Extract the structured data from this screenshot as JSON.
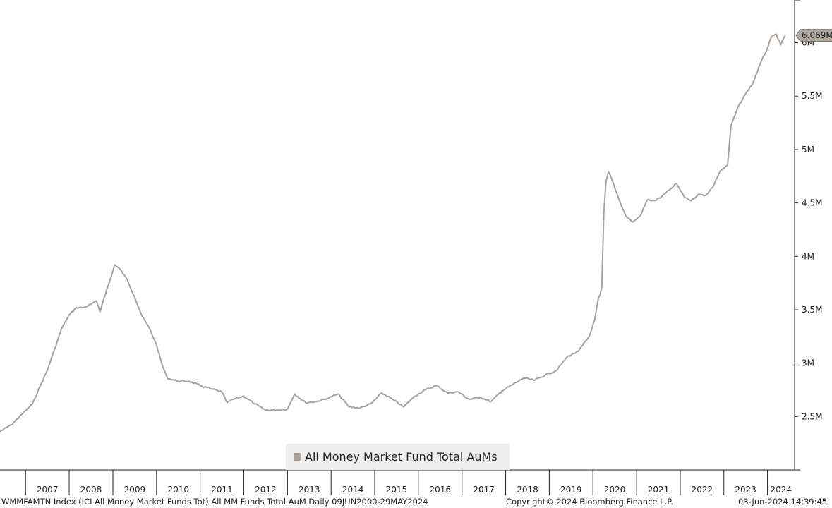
{
  "chart_data": {
    "type": "line",
    "title": "",
    "xlabel": "",
    "ylabel": "",
    "y_ticks": [
      {
        "value": 2.5,
        "label": "2.5M"
      },
      {
        "value": 3.0,
        "label": "3M"
      },
      {
        "value": 3.5,
        "label": "3.5M"
      },
      {
        "value": 4.0,
        "label": "4M"
      },
      {
        "value": 4.5,
        "label": "4.5M"
      },
      {
        "value": 5.0,
        "label": "5M"
      },
      {
        "value": 5.5,
        "label": "5.5M"
      },
      {
        "value": 6.0,
        "label": "6M"
      }
    ],
    "ylim": [
      2.0,
      6.4
    ],
    "x_range": [
      "2006-06-01",
      "2024-08-15"
    ],
    "x_ticks": [
      "2007",
      "2008",
      "2009",
      "2010",
      "2011",
      "2012",
      "2013",
      "2014",
      "2015",
      "2016",
      "2017",
      "2018",
      "2019",
      "2020",
      "2021",
      "2022",
      "2023",
      "2024"
    ],
    "grid": false,
    "legend_position": "bottom-center",
    "last_value_label": "6.069M",
    "series": [
      {
        "name": "All Money Market Fund Total AuMs",
        "color": "#a9a09a",
        "points": [
          [
            "2006-06-01",
            2.36
          ],
          [
            "2006-09-01",
            2.42
          ],
          [
            "2006-12-01",
            2.52
          ],
          [
            "2007-03-01",
            2.62
          ],
          [
            "2007-05-01",
            2.78
          ],
          [
            "2007-07-01",
            2.93
          ],
          [
            "2007-09-01",
            3.13
          ],
          [
            "2007-11-01",
            3.33
          ],
          [
            "2008-01-01",
            3.45
          ],
          [
            "2008-03-01",
            3.52
          ],
          [
            "2008-05-01",
            3.52
          ],
          [
            "2008-07-01",
            3.55
          ],
          [
            "2008-08-15",
            3.58
          ],
          [
            "2008-09-15",
            3.48
          ],
          [
            "2008-10-15",
            3.6
          ],
          [
            "2008-12-15",
            3.8
          ],
          [
            "2009-01-15",
            3.92
          ],
          [
            "2009-03-01",
            3.88
          ],
          [
            "2009-05-01",
            3.78
          ],
          [
            "2009-07-01",
            3.62
          ],
          [
            "2009-09-01",
            3.44
          ],
          [
            "2009-11-01",
            3.33
          ],
          [
            "2010-01-01",
            3.17
          ],
          [
            "2010-02-15",
            2.99
          ],
          [
            "2010-04-01",
            2.86
          ],
          [
            "2010-07-01",
            2.83
          ],
          [
            "2010-10-01",
            2.83
          ],
          [
            "2011-01-01",
            2.79
          ],
          [
            "2011-04-01",
            2.76
          ],
          [
            "2011-07-01",
            2.73
          ],
          [
            "2011-08-15",
            2.63
          ],
          [
            "2011-10-01",
            2.66
          ],
          [
            "2012-01-01",
            2.69
          ],
          [
            "2012-04-01",
            2.62
          ],
          [
            "2012-07-01",
            2.56
          ],
          [
            "2012-10-01",
            2.56
          ],
          [
            "2013-01-01",
            2.57
          ],
          [
            "2013-03-01",
            2.71
          ],
          [
            "2013-06-01",
            2.63
          ],
          [
            "2013-09-01",
            2.64
          ],
          [
            "2013-12-01",
            2.67
          ],
          [
            "2014-03-01",
            2.71
          ],
          [
            "2014-06-01",
            2.59
          ],
          [
            "2014-09-01",
            2.58
          ],
          [
            "2014-12-01",
            2.62
          ],
          [
            "2015-03-01",
            2.72
          ],
          [
            "2015-06-01",
            2.66
          ],
          [
            "2015-09-01",
            2.59
          ],
          [
            "2015-12-01",
            2.69
          ],
          [
            "2016-03-01",
            2.75
          ],
          [
            "2016-06-01",
            2.79
          ],
          [
            "2016-09-01",
            2.72
          ],
          [
            "2016-12-01",
            2.73
          ],
          [
            "2017-03-01",
            2.66
          ],
          [
            "2017-06-01",
            2.68
          ],
          [
            "2017-09-01",
            2.64
          ],
          [
            "2017-12-01",
            2.74
          ],
          [
            "2018-03-01",
            2.8
          ],
          [
            "2018-06-01",
            2.86
          ],
          [
            "2018-09-01",
            2.84
          ],
          [
            "2018-12-01",
            2.89
          ],
          [
            "2019-03-01",
            2.93
          ],
          [
            "2019-06-01",
            3.06
          ],
          [
            "2019-09-01",
            3.11
          ],
          [
            "2019-12-01",
            3.25
          ],
          [
            "2020-01-15",
            3.4
          ],
          [
            "2020-02-15",
            3.6
          ],
          [
            "2020-03-01",
            3.64
          ],
          [
            "2020-03-15",
            3.7
          ],
          [
            "2020-04-01",
            4.4
          ],
          [
            "2020-04-20",
            4.7
          ],
          [
            "2020-05-10",
            4.79
          ],
          [
            "2020-06-01",
            4.74
          ],
          [
            "2020-08-01",
            4.55
          ],
          [
            "2020-10-01",
            4.38
          ],
          [
            "2020-12-01",
            4.32
          ],
          [
            "2021-02-01",
            4.38
          ],
          [
            "2021-04-01",
            4.53
          ],
          [
            "2021-06-01",
            4.52
          ],
          [
            "2021-08-01",
            4.56
          ],
          [
            "2021-10-01",
            4.62
          ],
          [
            "2021-12-01",
            4.68
          ],
          [
            "2022-02-01",
            4.56
          ],
          [
            "2022-04-01",
            4.52
          ],
          [
            "2022-06-01",
            4.58
          ],
          [
            "2022-08-01",
            4.57
          ],
          [
            "2022-10-01",
            4.65
          ],
          [
            "2022-12-01",
            4.8
          ],
          [
            "2023-02-01",
            4.85
          ],
          [
            "2023-03-01",
            5.22
          ],
          [
            "2023-05-01",
            5.4
          ],
          [
            "2023-07-01",
            5.52
          ],
          [
            "2023-09-01",
            5.62
          ],
          [
            "2023-11-01",
            5.8
          ],
          [
            "2024-01-01",
            5.95
          ],
          [
            "2024-02-01",
            6.05
          ],
          [
            "2024-03-15",
            6.08
          ],
          [
            "2024-04-20",
            5.98
          ],
          [
            "2024-05-29",
            6.069
          ]
        ]
      }
    ]
  },
  "footer": {
    "left": "WMMFAMTN Index (ICI All Money Market Funds Tot) All MM Funds Total AuM  Daily 09JUN2000-29MAY2024",
    "middle": "Copyright© 2024 Bloomberg Finance L.P.",
    "right": "03-Jun-2024 14:39:45"
  }
}
